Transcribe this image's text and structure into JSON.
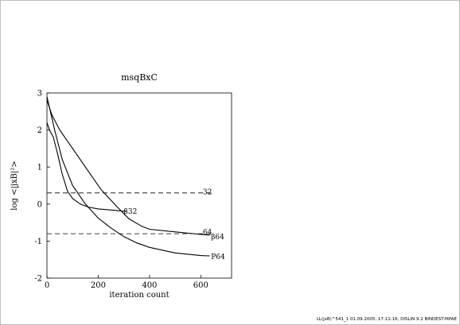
{
  "chart_data": {
    "type": "line",
    "title": "msqBxC",
    "xlabel": "iteration count",
    "ylabel": "log <|jxB|²>",
    "xlim": [
      0,
      720
    ],
    "ylim": [
      -2,
      3
    ],
    "xticks": [
      0,
      200,
      400,
      600
    ],
    "yticks": [
      3,
      2,
      1,
      0,
      -1,
      -2
    ],
    "grid": false,
    "series": [
      {
        "name": "β32",
        "style": "solid",
        "label_at": [
          300,
          -0.2
        ],
        "points": [
          [
            0,
            2.2
          ],
          [
            10,
            2.0
          ],
          [
            25,
            1.8
          ],
          [
            40,
            1.4
          ],
          [
            60,
            0.8
          ],
          [
            80,
            0.35
          ],
          [
            100,
            0.15
          ],
          [
            130,
            0.0
          ],
          [
            160,
            -0.08
          ],
          [
            200,
            -0.13
          ],
          [
            250,
            -0.16
          ],
          [
            310,
            -0.2
          ]
        ]
      },
      {
        "name": "β64",
        "style": "solid",
        "label_at": [
          640,
          -0.88
        ],
        "points": [
          [
            0,
            2.8
          ],
          [
            20,
            2.4
          ],
          [
            50,
            2.0
          ],
          [
            90,
            1.6
          ],
          [
            150,
            1.0
          ],
          [
            210,
            0.4
          ],
          [
            270,
            -0.05
          ],
          [
            320,
            -0.4
          ],
          [
            370,
            -0.6
          ],
          [
            400,
            -0.68
          ],
          [
            500,
            -0.75
          ],
          [
            600,
            -0.82
          ],
          [
            635,
            -0.84
          ]
        ]
      },
      {
        "name": "P64",
        "style": "solid",
        "label_at": [
          640,
          -1.42
        ],
        "points": [
          [
            0,
            2.9
          ],
          [
            10,
            2.6
          ],
          [
            30,
            2.0
          ],
          [
            60,
            1.2
          ],
          [
            100,
            0.5
          ],
          [
            150,
            0.0
          ],
          [
            200,
            -0.38
          ],
          [
            250,
            -0.65
          ],
          [
            300,
            -0.88
          ],
          [
            350,
            -1.05
          ],
          [
            400,
            -1.17
          ],
          [
            500,
            -1.32
          ],
          [
            600,
            -1.39
          ],
          [
            635,
            -1.4
          ]
        ]
      },
      {
        "name": "32",
        "style": "dashed",
        "label_at": [
          608,
          0.33
        ],
        "points": [
          [
            0,
            0.3
          ],
          [
            640,
            0.3
          ]
        ]
      },
      {
        "name": "64",
        "style": "dashed",
        "label_at": [
          608,
          -0.75
        ],
        "points": [
          [
            0,
            -0.8
          ],
          [
            640,
            -0.8
          ]
        ]
      }
    ]
  },
  "footer": "LL(jxB)^541_1     01.09.2005, 17:11:16, DISLIN 9.2 BINDEST-MPAE"
}
